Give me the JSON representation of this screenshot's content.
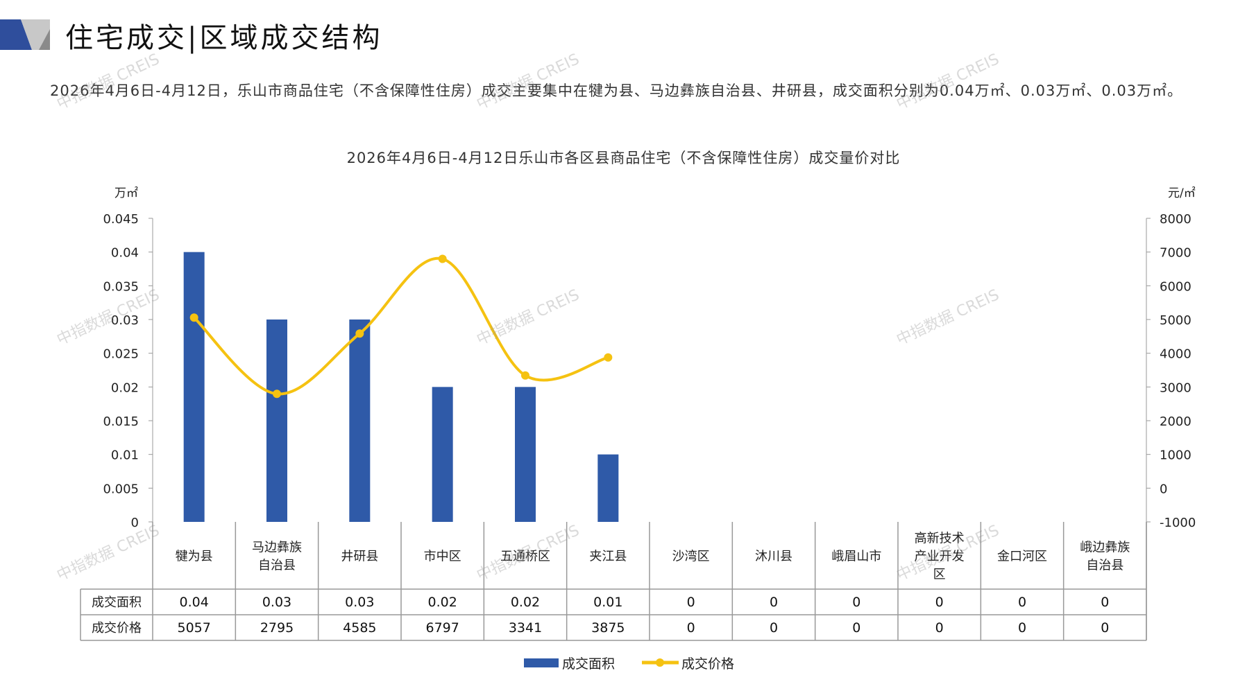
{
  "header": {
    "title": "住宅成交|区域成交结构",
    "logo_colors": [
      "#2f4e9c",
      "#c8c8c8",
      "#8a8a8a"
    ]
  },
  "summary": "2026年4月6日-4月12日，乐山市商品住宅（不含保障性住房）成交主要集中在犍为县、马边彝族自治县、井研县，成交面积分别为0.04万㎡、0.03万㎡、0.03万㎡。",
  "watermark": "中指数据 CREIS",
  "chart_data": {
    "type": "bar",
    "title": "2026年4月6日-4月12日乐山市各区县商品住宅（不含保障性住房）成交量价对比",
    "categories": [
      "犍为县",
      "马边彝族自治县",
      "井研县",
      "市中区",
      "五通桥区",
      "夹江县",
      "沙湾区",
      "沐川县",
      "峨眉山市",
      "高新技术产业开发区",
      "金口河区",
      "峨边彝族自治县"
    ],
    "category_labels": [
      [
        "犍为县"
      ],
      [
        "马边彝族",
        "自治县"
      ],
      [
        "井研县"
      ],
      [
        "市中区"
      ],
      [
        "五通桥区"
      ],
      [
        "夹江县"
      ],
      [
        "沙湾区"
      ],
      [
        "沐川县"
      ],
      [
        "峨眉山市"
      ],
      [
        "高新技术",
        "产业开发",
        "区"
      ],
      [
        "金口河区"
      ],
      [
        "峨边彝族",
        "自治县"
      ]
    ],
    "y_left": {
      "unit": "万㎡",
      "range": [
        0,
        0.045
      ],
      "ticks": [
        "0",
        "0.005",
        "0.01",
        "0.015",
        "0.02",
        "0.025",
        "0.03",
        "0.035",
        "0.04",
        "0.045"
      ]
    },
    "y_right": {
      "unit": "元/㎡",
      "range": [
        -1000,
        8000
      ],
      "ticks": [
        "-1000",
        "0",
        "1000",
        "2000",
        "3000",
        "4000",
        "5000",
        "6000",
        "7000",
        "8000"
      ]
    },
    "series": [
      {
        "name": "成交面积",
        "type": "bar",
        "axis": "left",
        "color": "#2f5aa8",
        "values": [
          0.04,
          0.03,
          0.03,
          0.02,
          0.02,
          0.01,
          0,
          0,
          0,
          0,
          0,
          0
        ],
        "table_values": [
          "0.04",
          "0.03",
          "0.03",
          "0.02",
          "0.02",
          "0.01",
          "0",
          "0",
          "0",
          "0",
          "0",
          "0"
        ]
      },
      {
        "name": "成交价格",
        "type": "line",
        "axis": "right",
        "color": "#f5c211",
        "values": [
          5057,
          2795,
          4585,
          6797,
          3341,
          3875,
          0,
          0,
          0,
          0,
          0,
          0
        ],
        "plotted_count": 6,
        "table_values": [
          "5057",
          "2795",
          "4585",
          "6797",
          "3341",
          "3875",
          "0",
          "0",
          "0",
          "0",
          "0",
          "0"
        ]
      }
    ],
    "legend": "bottom",
    "grid": false
  }
}
